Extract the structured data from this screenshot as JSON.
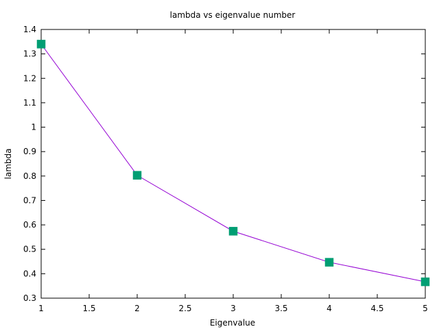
{
  "chart_data": {
    "type": "line",
    "title": "lambda vs eigenvalue number",
    "xlabel": "Eigenvalue",
    "ylabel": "lambda",
    "xlim": [
      1,
      5
    ],
    "ylim": [
      0.3,
      1.4
    ],
    "xticks": [
      "1",
      "1.5",
      "2",
      "2.5",
      "3",
      "3.5",
      "4",
      "4.5",
      "5"
    ],
    "yticks": [
      "0.3",
      "0.4",
      "0.5",
      "0.6",
      "0.7",
      "0.8",
      "0.9",
      "1",
      "1.1",
      "1.2",
      "1.3",
      "1.4"
    ],
    "grid": false,
    "series": [
      {
        "x": [
          1,
          2,
          3,
          4,
          5
        ],
        "y": [
          1.34,
          0.803,
          0.574,
          0.447,
          0.367
        ],
        "line_color": "#9400d3",
        "marker": "square",
        "marker_color": "#009e73"
      }
    ]
  }
}
